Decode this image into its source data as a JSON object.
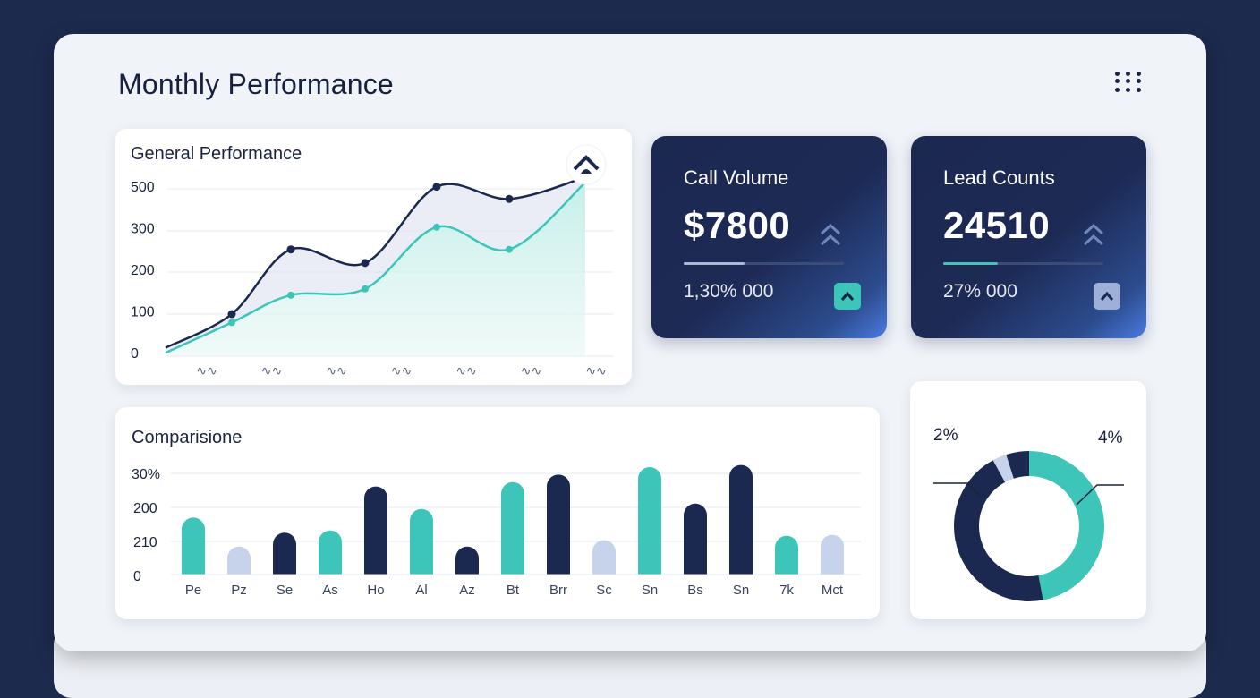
{
  "page": {
    "title": "Monthly Performance"
  },
  "colors": {
    "navy": "#1b2850",
    "teal": "#3cc5b8",
    "light": "#c7d3ea",
    "background": "#f0f3f8"
  },
  "general_performance": {
    "title": "General Performance",
    "icon": "chevron-up-icon",
    "chart_data": {
      "type": "area",
      "ytick_labels": [
        "500",
        "300",
        "200",
        "100",
        "0"
      ],
      "xtick_labels": [
        "∿∿",
        "∿∿",
        "∿∿",
        "∿∿",
        "∿∿",
        "∿∿",
        "∿∿"
      ],
      "series": [
        {
          "points": [
            [
              0,
              20
            ],
            [
              1,
              100
            ],
            [
              2,
              255
            ],
            [
              3,
              222
            ],
            [
              4,
              510
            ],
            [
              5,
              452
            ],
            [
              6,
              555
            ]
          ],
          "color": "#1b2850"
        },
        {
          "points": [
            [
              0,
              8
            ],
            [
              1,
              80
            ],
            [
              2,
              145
            ],
            [
              3,
              160
            ],
            [
              4,
              318
            ],
            [
              5,
              255
            ],
            [
              6,
              530
            ]
          ],
          "color": "#3cc5b8"
        }
      ]
    }
  },
  "call_volume": {
    "label": "Call Volume",
    "value": "$7800",
    "sub": "1,30% 000",
    "progress": 0.38,
    "icon": "double-chevron-up-icon",
    "button_icon": "chevron-up-icon"
  },
  "lead_counts": {
    "label": "Lead Counts",
    "value": "24510",
    "sub": "27% 000",
    "progress": 0.34,
    "icon": "double-chevron-up-icon",
    "button_icon": "chevron-up-icon"
  },
  "comparison": {
    "title": "Comparisione",
    "chart_data": {
      "type": "bar",
      "ytick_labels": [
        "30%",
        "200",
        "210",
        "0"
      ],
      "categories": [
        "Pe",
        "Pz",
        "Se",
        "As",
        "Ho",
        "Al",
        "Az",
        "Bt",
        "Brr",
        "Sc",
        "Sn",
        "Bs",
        "Sn",
        "7k",
        "Mct"
      ],
      "values": [
        0.53,
        0.26,
        0.39,
        0.41,
        0.82,
        0.61,
        0.26,
        0.86,
        0.93,
        0.32,
        1.0,
        0.66,
        1.02,
        0.36,
        0.37
      ],
      "colors": [
        "teal",
        "light",
        "navy",
        "teal",
        "navy",
        "teal",
        "navy",
        "teal",
        "navy",
        "light",
        "teal",
        "navy",
        "navy",
        "teal",
        "light"
      ]
    }
  },
  "donut": {
    "chart_data": {
      "type": "pie",
      "labels": [
        "2%",
        "4%"
      ],
      "slices": [
        {
          "value": 47,
          "color": "#3cc5b8"
        },
        {
          "value": 45,
          "color": "#1b2850"
        },
        {
          "value": 3,
          "color": "#c7d3ea"
        },
        {
          "value": 5,
          "color": "#1b2850"
        }
      ]
    }
  }
}
